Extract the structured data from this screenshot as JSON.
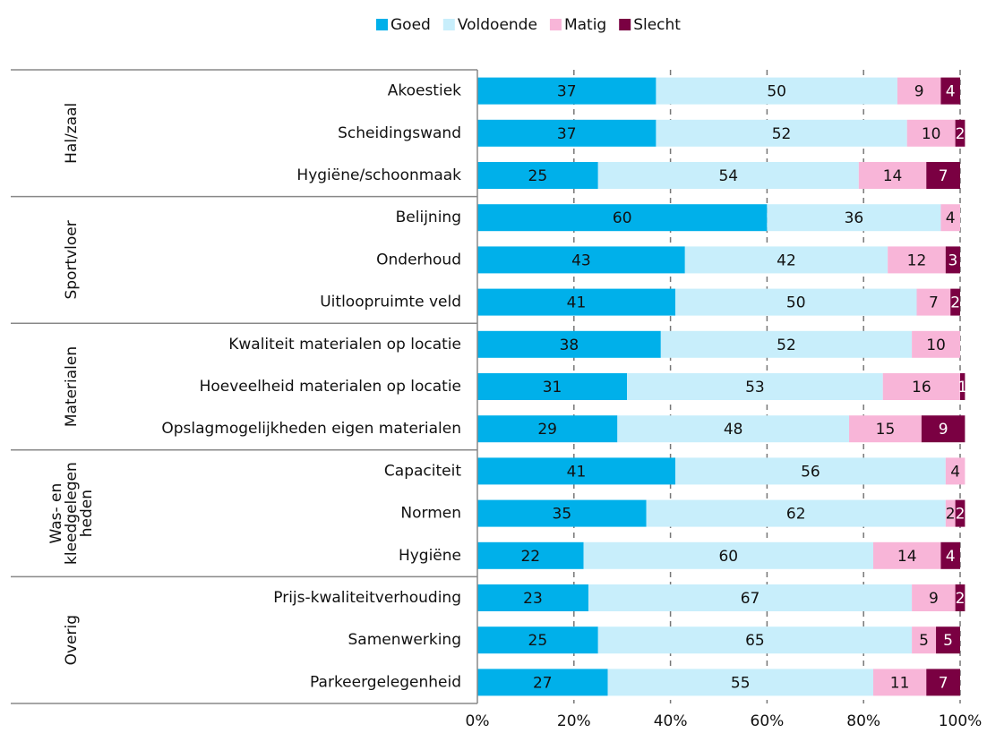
{
  "chart_data": {
    "type": "stacked-bar-horizontal",
    "groups": [
      {
        "name": [
          "Hal/zaal"
        ],
        "categories": [
          "Akoestiek",
          "Scheidingswand",
          "Hygiëne/schoonmaak"
        ]
      },
      {
        "name": [
          "Sportvloer"
        ],
        "categories": [
          "Belijning",
          "Onderhoud",
          "Uitloopruimte veld"
        ]
      },
      {
        "name": [
          "Materialen"
        ],
        "categories": [
          "Kwaliteit materialen op locatie",
          "Hoeveelheid materialen op locatie",
          "Opslagmogelijkheden eigen materialen"
        ]
      },
      {
        "name": [
          "Was- en",
          "kleedgelegen",
          "heden"
        ],
        "categories": [
          "Capaciteit",
          "Normen",
          "Hygiëne"
        ]
      },
      {
        "name": [
          "Overig"
        ],
        "categories": [
          "Prijs-kwaliteitverhouding",
          "Samenwerking",
          "Parkeergelegenheid"
        ]
      }
    ],
    "series": [
      {
        "name": "Goed",
        "color": "#00b0ea",
        "values": [
          37,
          37,
          25,
          60,
          43,
          41,
          38,
          31,
          29,
          41,
          35,
          22,
          23,
          25,
          27
        ]
      },
      {
        "name": "Voldoende",
        "color": "#c8eefb",
        "values": [
          50,
          52,
          54,
          36,
          42,
          50,
          52,
          53,
          48,
          56,
          62,
          60,
          67,
          65,
          55
        ]
      },
      {
        "name": "Matig",
        "color": "#f8b5d8",
        "values": [
          9,
          10,
          14,
          4,
          12,
          7,
          10,
          16,
          15,
          4,
          2,
          14,
          9,
          5,
          11
        ]
      },
      {
        "name": "Slecht",
        "color": "#7a0042",
        "values": [
          4,
          2,
          7,
          null,
          3,
          2,
          null,
          1,
          9,
          null,
          2,
          4,
          2,
          5,
          7
        ]
      }
    ],
    "xlim": [
      0,
      100
    ],
    "xticks": [
      {
        "value": 0,
        "label": "0%"
      },
      {
        "value": 20,
        "label": "20%"
      },
      {
        "value": 40,
        "label": "40%"
      },
      {
        "value": 60,
        "label": "60%"
      },
      {
        "value": 80,
        "label": "80%"
      },
      {
        "value": 100,
        "label": "100%"
      }
    ],
    "grid": true
  }
}
